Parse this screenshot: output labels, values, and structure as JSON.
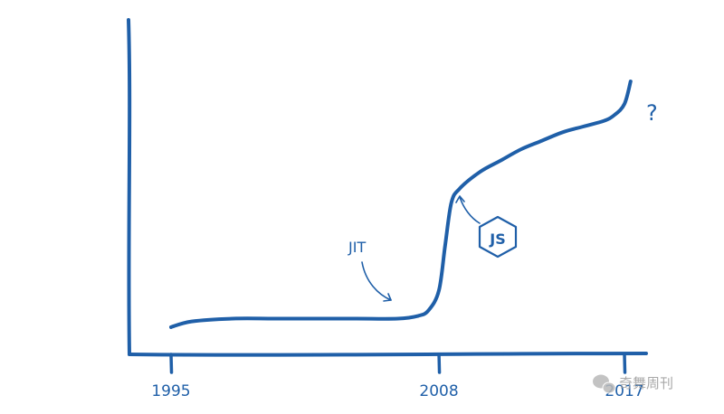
{
  "chart_data": {
    "type": "line",
    "title": "",
    "xlabel": "",
    "ylabel": "",
    "x_ticks": [
      "1995",
      "2008",
      "2017"
    ],
    "series": [
      {
        "x": [
          1995,
          1996,
          1998,
          2000,
          2002,
          2004,
          2006,
          2007,
          2007.5,
          2008,
          2008.3,
          2008.6,
          2009,
          2010,
          2011,
          2012,
          2013,
          2014,
          2015,
          2016,
          2016.5,
          2017,
          2017.3
        ],
        "y": [
          1,
          3,
          4,
          4,
          4,
          4,
          4,
          5,
          7,
          14,
          30,
          45,
          50,
          56,
          60,
          64,
          67,
          70,
          72,
          74,
          76,
          80,
          88
        ]
      }
    ],
    "annotations": {
      "jit": "JIT",
      "js": "JS",
      "question": "?"
    },
    "colors": {
      "line": "#1f5fa8"
    },
    "grid": false
  },
  "watermark": {
    "text": "奇舞周刊",
    "icon": "wechat-logo"
  }
}
